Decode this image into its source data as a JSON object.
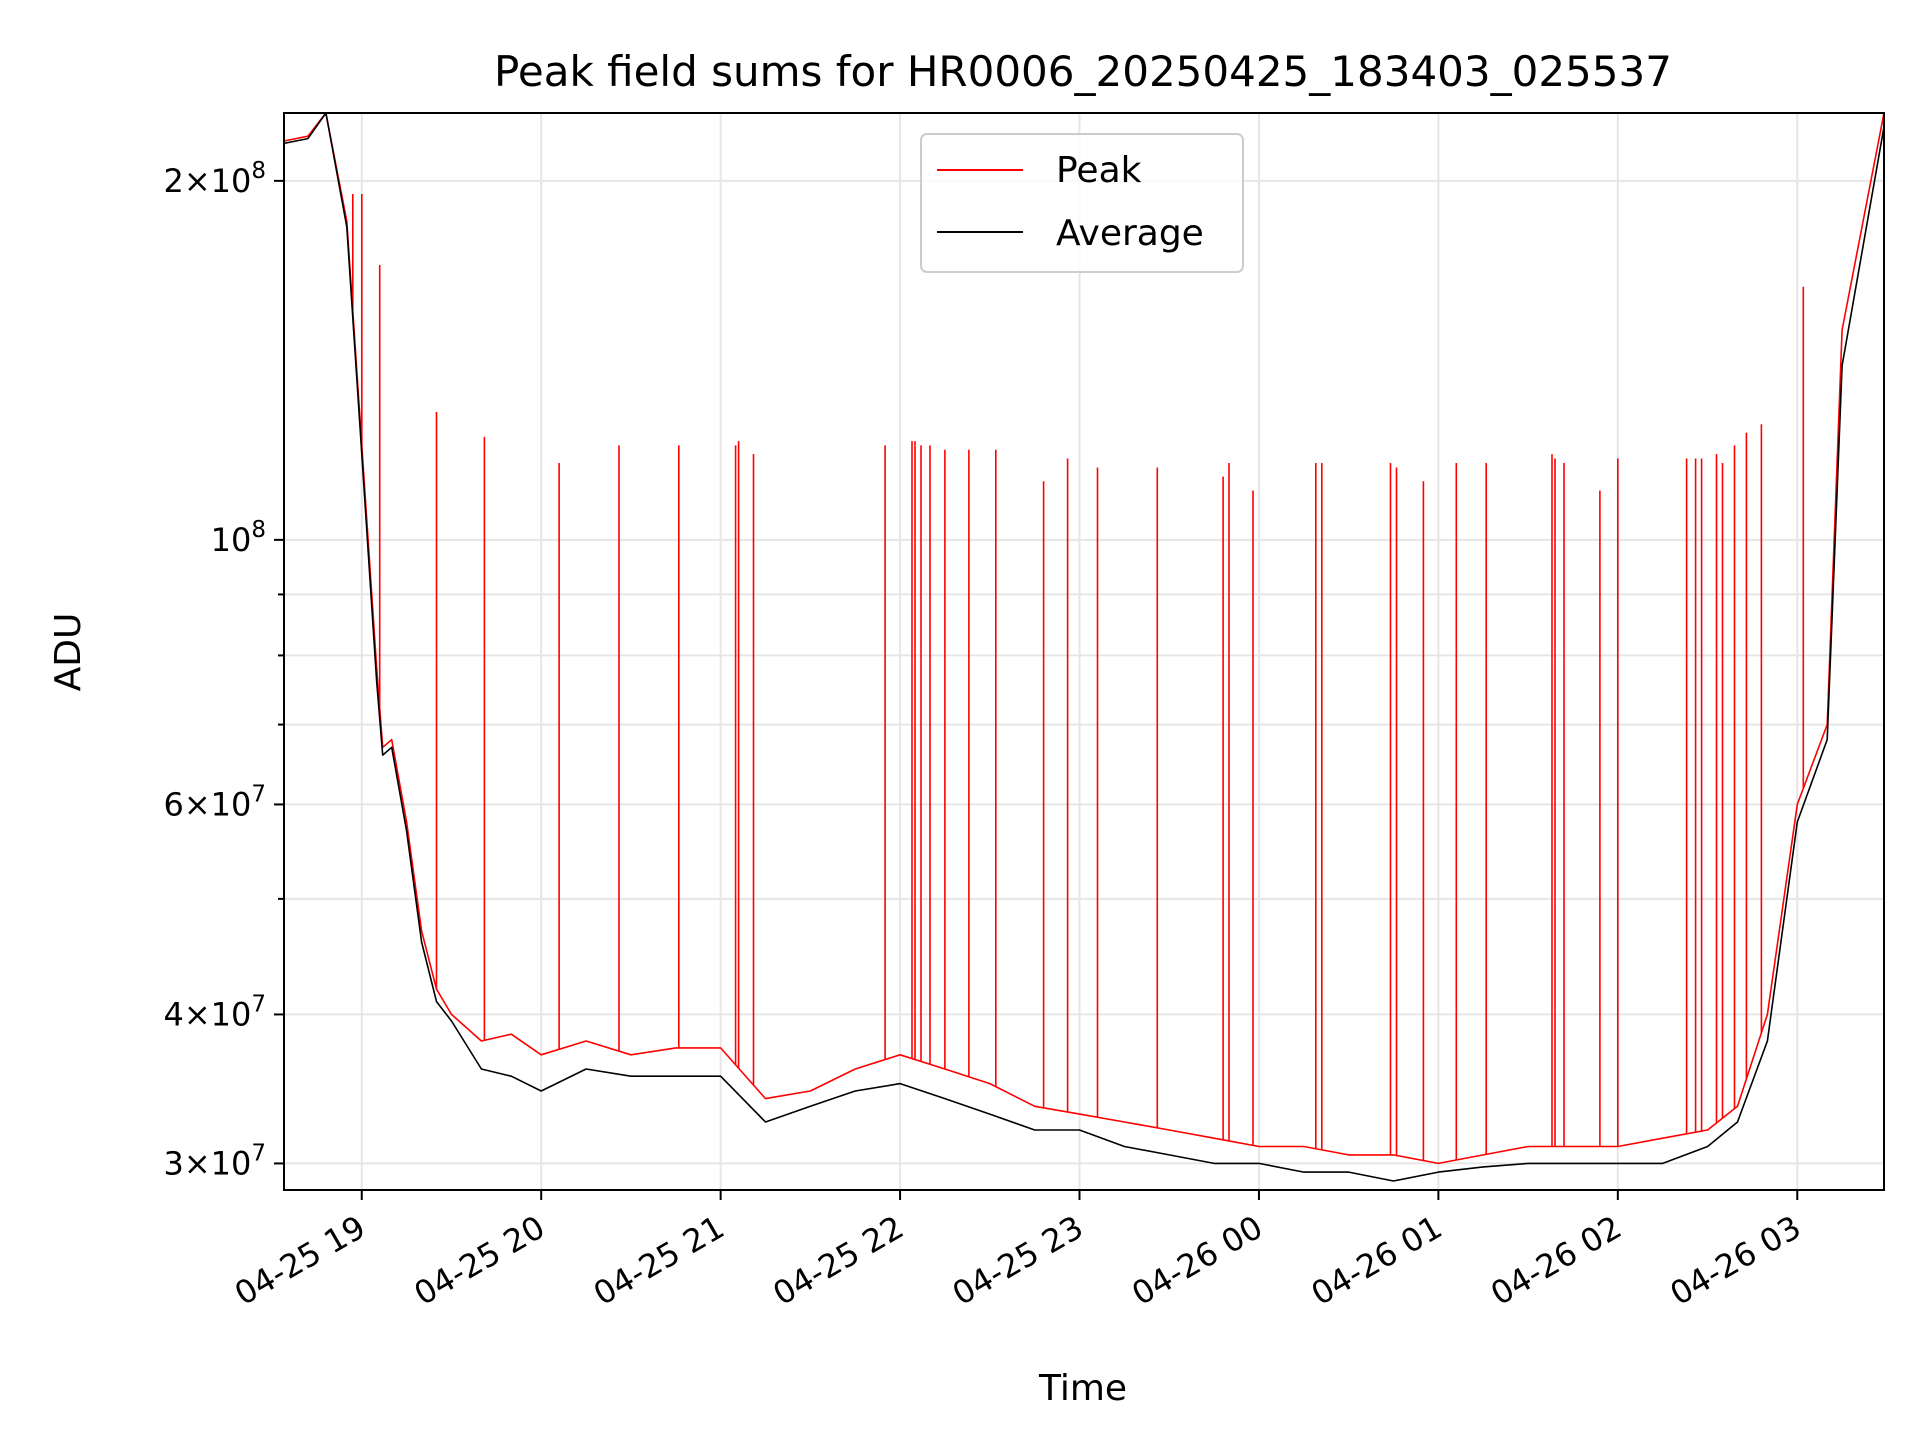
{
  "chart_data": {
    "type": "line",
    "title": "Peak field sums for HR0006_20250425_183403_025537",
    "xlabel": "Time",
    "ylabel": "ADU",
    "y_scale": "log",
    "grid": true,
    "legend_position": "upper-center",
    "xlim": [
      "2025-04-25 18:34",
      "2025-04-26 03:29"
    ],
    "ylim": [
      28500000,
      228000000
    ],
    "x_ticks": [
      "04-25 19",
      "04-25 20",
      "04-25 21",
      "04-25 22",
      "04-25 23",
      "04-26 00",
      "04-26 01",
      "04-26 02",
      "04-26 03"
    ],
    "y_ticks": [
      {
        "value": 30000000,
        "mant": "3",
        "exp": "7"
      },
      {
        "value": 40000000,
        "mant": "4",
        "exp": "7"
      },
      {
        "value": 60000000,
        "mant": "6",
        "exp": "7"
      },
      {
        "value": 100000000,
        "mant": "",
        "exp": "8"
      },
      {
        "value": 200000000,
        "mant": "2",
        "exp": "8"
      }
    ],
    "series": [
      {
        "name": "Peak",
        "color": "#ff0000",
        "x": [
          "2025-04-25 18:34",
          "2025-04-25 18:42",
          "2025-04-25 18:48",
          "2025-04-25 18:55",
          "2025-04-25 19:00",
          "2025-04-25 19:05",
          "2025-04-25 19:07",
          "2025-04-25 19:10",
          "2025-04-25 19:15",
          "2025-04-25 19:20",
          "2025-04-25 19:25",
          "2025-04-25 19:30",
          "2025-04-25 19:40",
          "2025-04-25 19:50",
          "2025-04-25 20:00",
          "2025-04-25 20:15",
          "2025-04-25 20:30",
          "2025-04-25 20:45",
          "2025-04-25 21:00",
          "2025-04-25 21:15",
          "2025-04-25 21:30",
          "2025-04-25 21:45",
          "2025-04-25 22:00",
          "2025-04-25 22:15",
          "2025-04-25 22:30",
          "2025-04-25 22:45",
          "2025-04-25 23:00",
          "2025-04-25 23:15",
          "2025-04-25 23:30",
          "2025-04-25 23:45",
          "2025-04-26 00:00",
          "2025-04-26 00:15",
          "2025-04-26 00:30",
          "2025-04-26 00:45",
          "2025-04-26 01:00",
          "2025-04-26 01:15",
          "2025-04-26 01:30",
          "2025-04-26 01:45",
          "2025-04-26 02:00",
          "2025-04-26 02:15",
          "2025-04-26 02:30",
          "2025-04-26 02:40",
          "2025-04-26 02:50",
          "2025-04-26 03:00",
          "2025-04-26 03:10",
          "2025-04-26 03:15",
          "2025-04-26 03:29"
        ],
        "y": [
          216000000,
          218000000,
          228000000,
          185000000,
          120000000,
          78000000,
          67000000,
          68000000,
          58000000,
          47000000,
          42000000,
          40000000,
          38000000,
          38500000,
          37000000,
          38000000,
          37000000,
          37500000,
          37500000,
          34000000,
          34500000,
          36000000,
          37000000,
          36000000,
          35000000,
          33500000,
          33000000,
          32500000,
          32000000,
          31500000,
          31000000,
          31000000,
          30500000,
          30500000,
          30000000,
          30500000,
          31000000,
          31000000,
          31000000,
          31500000,
          32000000,
          33500000,
          40000000,
          60000000,
          70000000,
          150000000,
          228000000
        ]
      },
      {
        "name": "Average",
        "color": "#000000",
        "x": [
          "2025-04-25 18:34",
          "2025-04-25 18:42",
          "2025-04-25 18:48",
          "2025-04-25 18:55",
          "2025-04-25 19:00",
          "2025-04-25 19:05",
          "2025-04-25 19:07",
          "2025-04-25 19:10",
          "2025-04-25 19:15",
          "2025-04-25 19:20",
          "2025-04-25 19:25",
          "2025-04-25 19:30",
          "2025-04-25 19:40",
          "2025-04-25 19:50",
          "2025-04-25 20:00",
          "2025-04-25 20:15",
          "2025-04-25 20:30",
          "2025-04-25 20:45",
          "2025-04-25 21:00",
          "2025-04-25 21:15",
          "2025-04-25 21:30",
          "2025-04-25 21:45",
          "2025-04-25 22:00",
          "2025-04-25 22:15",
          "2025-04-25 22:30",
          "2025-04-25 22:45",
          "2025-04-25 23:00",
          "2025-04-25 23:15",
          "2025-04-25 23:30",
          "2025-04-25 23:45",
          "2025-04-26 00:00",
          "2025-04-26 00:15",
          "2025-04-26 00:30",
          "2025-04-26 00:45",
          "2025-04-26 01:00",
          "2025-04-26 01:15",
          "2025-04-26 01:30",
          "2025-04-26 01:45",
          "2025-04-26 02:00",
          "2025-04-26 02:15",
          "2025-04-26 02:30",
          "2025-04-26 02:40",
          "2025-04-26 02:50",
          "2025-04-26 03:00",
          "2025-04-26 03:10",
          "2025-04-26 03:15",
          "2025-04-26 03:29"
        ],
        "y": [
          215000000,
          217000000,
          228000000,
          183000000,
          118000000,
          76000000,
          66000000,
          67000000,
          57000000,
          46000000,
          41000000,
          39500000,
          36000000,
          35500000,
          34500000,
          36000000,
          35500000,
          35500000,
          35500000,
          32500000,
          33500000,
          34500000,
          35000000,
          34000000,
          33000000,
          32000000,
          32000000,
          31000000,
          30500000,
          30000000,
          30000000,
          29500000,
          29500000,
          29000000,
          29500000,
          29800000,
          30000000,
          30000000,
          30000000,
          30000000,
          31000000,
          32500000,
          38000000,
          58000000,
          68000000,
          140000000,
          222000000
        ]
      }
    ],
    "spikes": {
      "x": [
        "2025-04-25 18:57",
        "2025-04-25 19:00",
        "2025-04-25 19:06",
        "2025-04-25 19:25",
        "2025-04-25 19:41",
        "2025-04-25 20:06",
        "2025-04-25 20:26",
        "2025-04-25 20:46",
        "2025-04-25 21:05",
        "2025-04-25 21:06",
        "2025-04-25 21:11",
        "2025-04-25 21:55",
        "2025-04-25 22:04",
        "2025-04-25 22:05",
        "2025-04-25 22:07",
        "2025-04-25 22:10",
        "2025-04-25 22:15",
        "2025-04-25 22:23",
        "2025-04-25 22:32",
        "2025-04-25 22:48",
        "2025-04-25 22:56",
        "2025-04-25 23:06",
        "2025-04-25 23:26",
        "2025-04-25 23:48",
        "2025-04-25 23:50",
        "2025-04-25 23:58",
        "2025-04-26 00:19",
        "2025-04-26 00:21",
        "2025-04-26 00:44",
        "2025-04-26 00:46",
        "2025-04-26 00:55",
        "2025-04-26 01:06",
        "2025-04-26 01:16",
        "2025-04-26 01:38",
        "2025-04-26 01:39",
        "2025-04-26 01:42",
        "2025-04-26 01:54",
        "2025-04-26 02:00",
        "2025-04-26 02:23",
        "2025-04-26 02:26",
        "2025-04-26 02:28",
        "2025-04-26 02:33",
        "2025-04-26 02:35",
        "2025-04-26 02:39",
        "2025-04-26 02:43",
        "2025-04-26 02:48",
        "2025-04-26 03:02"
      ],
      "y": [
        195000000,
        195000000,
        170000000,
        128000000,
        122000000,
        116000000,
        120000000,
        120000000,
        120000000,
        121000000,
        118000000,
        120000000,
        121000000,
        121000000,
        120000000,
        120000000,
        119000000,
        119000000,
        119000000,
        112000000,
        117000000,
        115000000,
        115000000,
        113000000,
        116000000,
        110000000,
        116000000,
        116000000,
        116000000,
        115000000,
        112000000,
        116000000,
        116000000,
        118000000,
        117000000,
        116000000,
        110000000,
        117000000,
        117000000,
        117000000,
        117000000,
        118000000,
        116000000,
        120000000,
        123000000,
        125000000,
        163000000
      ]
    }
  }
}
